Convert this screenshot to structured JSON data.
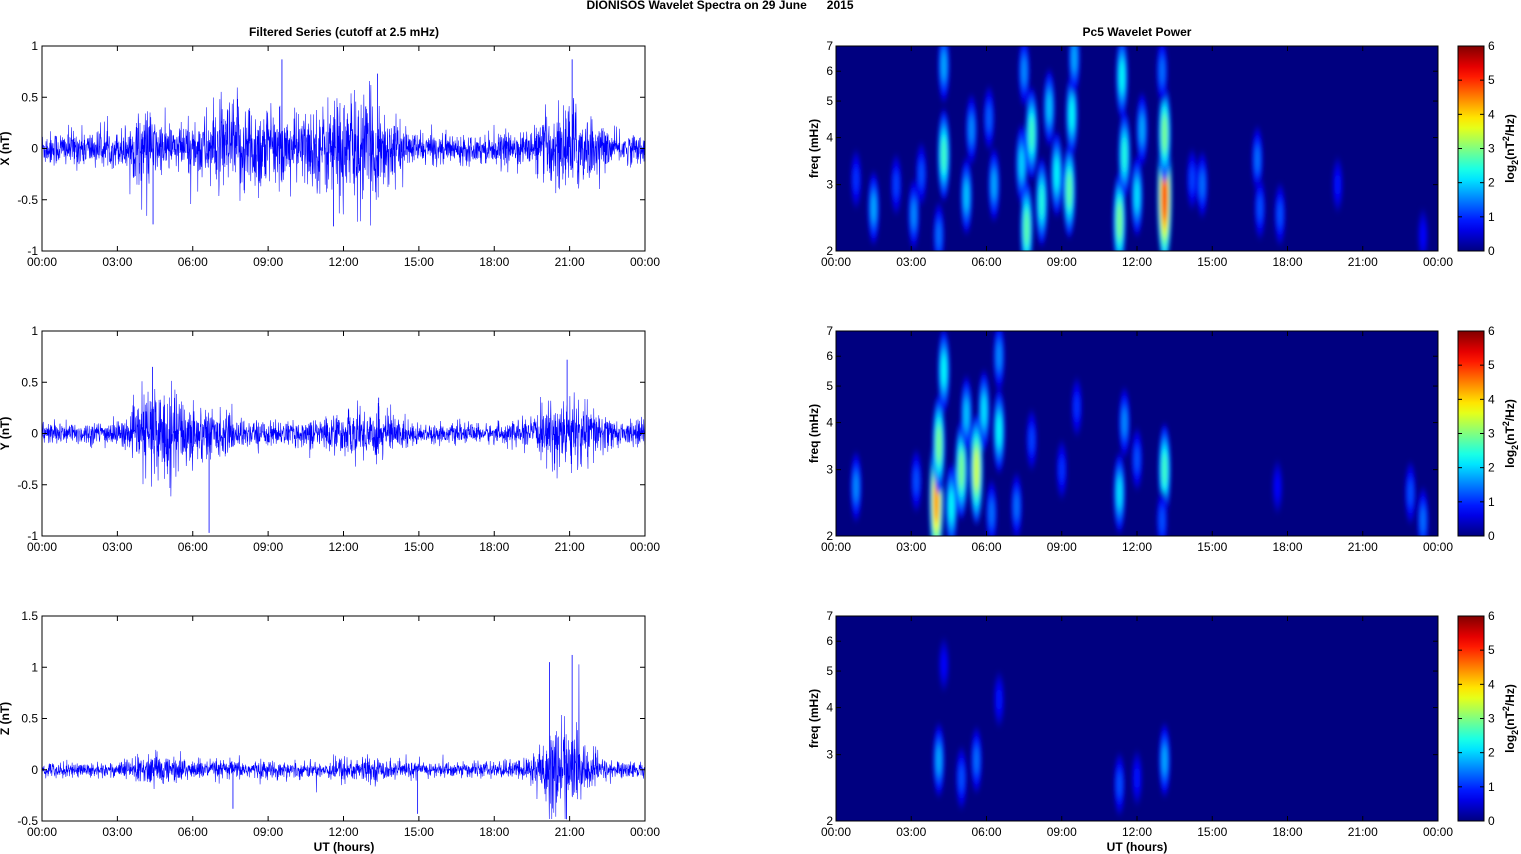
{
  "figure": {
    "main_title": "DIONISOS Wavelet Spectra on 29 June      2015",
    "left_title": "Filtered Series (cutoff at 2.5 mHz)",
    "right_title": "Pc5 Wavelet Power",
    "x_label": "UT (hours)"
  },
  "colors": {
    "series_line": "#0000ff",
    "background": "#ffffff",
    "colormap": "jet"
  },
  "chart_data": [
    {
      "type": "line",
      "component": "X",
      "ylabel": "X (nT)",
      "xlim_hours": [
        0,
        24
      ],
      "ylim": [
        -1,
        1
      ],
      "yticks": [
        -1,
        -0.5,
        0,
        0.5,
        1
      ],
      "yticklabels": [
        "-1",
        "-0.5",
        "0",
        "0.5",
        "1"
      ],
      "xticklabels": [
        "00:00",
        "03:00",
        "06:00",
        "09:00",
        "12:00",
        "15:00",
        "18:00",
        "21:00",
        "00:00"
      ],
      "series": [
        {
          "x_hours": [
            0,
            1.5,
            3,
            4.2,
            4.5,
            5.2,
            6,
            7.8,
            8.7,
            9.6,
            11.2,
            11.6,
            13.3,
            14.5,
            16,
            18,
            19.5,
            20.5,
            21.2,
            22.5,
            24
          ],
          "envelope": [
            0.18,
            0.2,
            0.18,
            0.45,
            0.3,
            0.25,
            0.3,
            0.55,
            0.5,
            0.35,
            0.45,
            0.6,
            0.55,
            0.18,
            0.15,
            0.15,
            0.2,
            0.45,
            0.5,
            0.18,
            0.15
          ],
          "extremes": [
            {
              "x_hours": 4.42,
              "y": -0.74
            },
            {
              "x_hours": 9.55,
              "y": 0.87
            },
            {
              "x_hours": 11.6,
              "y": -0.76
            },
            {
              "x_hours": 13.35,
              "y": 0.73
            },
            {
              "x_hours": 21.1,
              "y": 0.87
            }
          ]
        }
      ]
    },
    {
      "type": "line",
      "component": "Y",
      "ylabel": "Y (nT)",
      "xlim_hours": [
        0,
        24
      ],
      "ylim": [
        -1,
        1
      ],
      "yticks": [
        -1,
        -0.5,
        0,
        0.5,
        1
      ],
      "yticklabels": [
        "-1",
        "-0.5",
        "0",
        "0.5",
        "1"
      ],
      "xticklabels": [
        "00:00",
        "03:00",
        "06:00",
        "09:00",
        "12:00",
        "15:00",
        "18:00",
        "21:00",
        "00:00"
      ],
      "series": [
        {
          "x_hours": [
            0,
            2,
            3.5,
            4.3,
            4.8,
            5.6,
            6.5,
            8,
            10,
            11.6,
            13.3,
            15,
            18,
            19.5,
            20.6,
            21.2,
            23,
            24
          ],
          "envelope": [
            0.12,
            0.12,
            0.15,
            0.55,
            0.5,
            0.4,
            0.3,
            0.15,
            0.12,
            0.2,
            0.3,
            0.1,
            0.1,
            0.15,
            0.4,
            0.4,
            0.12,
            0.15
          ],
          "extremes": [
            {
              "x_hours": 4.4,
              "y": 0.65
            },
            {
              "x_hours": 6.65,
              "y": -0.97
            },
            {
              "x_hours": 20.9,
              "y": 0.72
            },
            {
              "x_hours": 13.4,
              "y": 0.35
            }
          ]
        }
      ]
    },
    {
      "type": "line",
      "component": "Z",
      "ylabel": "Z (nT)",
      "xlim_hours": [
        0,
        24
      ],
      "ylim": [
        -0.5,
        1.5
      ],
      "yticks": [
        -0.5,
        0,
        0.5,
        1,
        1.5
      ],
      "yticklabels": [
        "-0.5",
        "0",
        "0.5",
        "1",
        "1.5"
      ],
      "xticklabels": [
        "00:00",
        "03:00",
        "06:00",
        "09:00",
        "12:00",
        "15:00",
        "18:00",
        "21:00",
        "00:00"
      ],
      "series": [
        {
          "x_hours": [
            0,
            3,
            4.3,
            5,
            6.5,
            8,
            11,
            12,
            13.3,
            15,
            18,
            19.3,
            20.2,
            20.8,
            21.3,
            22.5,
            24
          ],
          "envelope": [
            0.08,
            0.08,
            0.18,
            0.15,
            0.1,
            0.1,
            0.08,
            0.15,
            0.12,
            0.08,
            0.08,
            0.12,
            0.45,
            0.55,
            0.35,
            0.1,
            0.08
          ],
          "extremes": [
            {
              "x_hours": 21.1,
              "y": 1.12
            },
            {
              "x_hours": 20.2,
              "y": 1.05
            },
            {
              "x_hours": 14.95,
              "y": -0.43
            },
            {
              "x_hours": 7.6,
              "y": -0.38
            }
          ]
        }
      ]
    },
    {
      "type": "heatmap",
      "component": "X",
      "title": "Pc5 Wavelet Power",
      "ylabel": "freq (mHz)",
      "y_scale": "log",
      "ylim_mhz": [
        2,
        7
      ],
      "yticklabels": [
        "2",
        "3",
        "4",
        "5",
        "6",
        "7"
      ],
      "xlim_hours": [
        0,
        24
      ],
      "xticklabels": [
        "00:00",
        "03:00",
        "06:00",
        "09:00",
        "12:00",
        "15:00",
        "18:00",
        "21:00",
        "00:00"
      ],
      "colorbar": {
        "label_base": "log",
        "label_sub": "2",
        "label_unit_a": "(nT",
        "label_sup": "2",
        "label_unit_b": "/Hz)",
        "range": [
          0,
          6
        ],
        "ticks": [
          "0",
          "1",
          "2",
          "3",
          "4",
          "5",
          "6"
        ]
      },
      "blobs": [
        {
          "x_hours": 0.8,
          "f_mhz": 3.1,
          "power": 1.2
        },
        {
          "x_hours": 1.5,
          "f_mhz": 2.6,
          "power": 2.0
        },
        {
          "x_hours": 2.4,
          "f_mhz": 3.0,
          "power": 1.3
        },
        {
          "x_hours": 3.1,
          "f_mhz": 2.5,
          "power": 1.8
        },
        {
          "x_hours": 3.4,
          "f_mhz": 3.2,
          "power": 1.4
        },
        {
          "x_hours": 4.3,
          "f_mhz": 3.6,
          "power": 3.0
        },
        {
          "x_hours": 4.3,
          "f_mhz": 6.2,
          "power": 2.0
        },
        {
          "x_hours": 4.1,
          "f_mhz": 2.2,
          "power": 1.6
        },
        {
          "x_hours": 5.2,
          "f_mhz": 2.8,
          "power": 2.2
        },
        {
          "x_hours": 5.4,
          "f_mhz": 4.2,
          "power": 1.8
        },
        {
          "x_hours": 6.3,
          "f_mhz": 3.0,
          "power": 2.0
        },
        {
          "x_hours": 6.1,
          "f_mhz": 4.5,
          "power": 1.5
        },
        {
          "x_hours": 7.4,
          "f_mhz": 3.4,
          "power": 2.3
        },
        {
          "x_hours": 7.6,
          "f_mhz": 2.3,
          "power": 3.2
        },
        {
          "x_hours": 7.8,
          "f_mhz": 4.1,
          "power": 3.0
        },
        {
          "x_hours": 7.5,
          "f_mhz": 6.0,
          "power": 1.8
        },
        {
          "x_hours": 8.2,
          "f_mhz": 2.7,
          "power": 2.8
        },
        {
          "x_hours": 8.8,
          "f_mhz": 3.2,
          "power": 2.6
        },
        {
          "x_hours": 8.5,
          "f_mhz": 4.8,
          "power": 2.2
        },
        {
          "x_hours": 9.3,
          "f_mhz": 2.9,
          "power": 3.2
        },
        {
          "x_hours": 9.4,
          "f_mhz": 4.6,
          "power": 2.6
        },
        {
          "x_hours": 9.5,
          "f_mhz": 6.5,
          "power": 2.0
        },
        {
          "x_hours": 11.3,
          "f_mhz": 2.4,
          "power": 3.4
        },
        {
          "x_hours": 11.5,
          "f_mhz": 3.6,
          "power": 2.8
        },
        {
          "x_hours": 11.4,
          "f_mhz": 5.8,
          "power": 2.6
        },
        {
          "x_hours": 12.0,
          "f_mhz": 2.8,
          "power": 2.4
        },
        {
          "x_hours": 12.2,
          "f_mhz": 4.2,
          "power": 2.0
        },
        {
          "x_hours": 13.1,
          "f_mhz": 2.8,
          "power": 5.6
        },
        {
          "x_hours": 13.1,
          "f_mhz": 4.1,
          "power": 3.4
        },
        {
          "x_hours": 13.0,
          "f_mhz": 6.0,
          "power": 1.6
        },
        {
          "x_hours": 14.2,
          "f_mhz": 3.1,
          "power": 1.3
        },
        {
          "x_hours": 14.6,
          "f_mhz": 3.0,
          "power": 1.6
        },
        {
          "x_hours": 16.8,
          "f_mhz": 3.5,
          "power": 1.6
        },
        {
          "x_hours": 16.9,
          "f_mhz": 2.6,
          "power": 1.4
        },
        {
          "x_hours": 17.7,
          "f_mhz": 2.5,
          "power": 1.4
        },
        {
          "x_hours": 20.0,
          "f_mhz": 3.0,
          "power": 1.0
        },
        {
          "x_hours": 23.4,
          "f_mhz": 2.2,
          "power": 0.9
        }
      ]
    },
    {
      "type": "heatmap",
      "component": "Y",
      "ylabel": "freq (mHz)",
      "y_scale": "log",
      "ylim_mhz": [
        2,
        7
      ],
      "yticklabels": [
        "2",
        "3",
        "4",
        "5",
        "6",
        "7"
      ],
      "xlim_hours": [
        0,
        24
      ],
      "xticklabels": [
        "00:00",
        "03:00",
        "06:00",
        "09:00",
        "12:00",
        "15:00",
        "18:00",
        "21:00",
        "00:00"
      ],
      "colorbar": {
        "label_base": "log",
        "label_sub": "2",
        "label_unit_a": "(nT",
        "label_sup": "2",
        "label_unit_b": "/Hz)",
        "range": [
          0,
          6
        ],
        "ticks": [
          "0",
          "1",
          "2",
          "3",
          "4",
          "5",
          "6"
        ]
      },
      "blobs": [
        {
          "x_hours": 0.8,
          "f_mhz": 2.7,
          "power": 1.8
        },
        {
          "x_hours": 3.2,
          "f_mhz": 2.8,
          "power": 1.4
        },
        {
          "x_hours": 4.0,
          "f_mhz": 2.5,
          "power": 5.0
        },
        {
          "x_hours": 4.1,
          "f_mhz": 3.5,
          "power": 3.4
        },
        {
          "x_hours": 4.3,
          "f_mhz": 5.5,
          "power": 2.6
        },
        {
          "x_hours": 4.6,
          "f_mhz": 2.4,
          "power": 2.6
        },
        {
          "x_hours": 5.0,
          "f_mhz": 3.0,
          "power": 3.4
        },
        {
          "x_hours": 5.2,
          "f_mhz": 4.2,
          "power": 2.2
        },
        {
          "x_hours": 5.6,
          "f_mhz": 3.0,
          "power": 4.0
        },
        {
          "x_hours": 5.9,
          "f_mhz": 4.3,
          "power": 2.4
        },
        {
          "x_hours": 6.5,
          "f_mhz": 3.8,
          "power": 2.6
        },
        {
          "x_hours": 6.5,
          "f_mhz": 6.0,
          "power": 1.8
        },
        {
          "x_hours": 6.2,
          "f_mhz": 2.3,
          "power": 1.6
        },
        {
          "x_hours": 7.2,
          "f_mhz": 2.4,
          "power": 1.6
        },
        {
          "x_hours": 7.8,
          "f_mhz": 3.6,
          "power": 1.3
        },
        {
          "x_hours": 9.0,
          "f_mhz": 3.0,
          "power": 1.2
        },
        {
          "x_hours": 9.6,
          "f_mhz": 4.4,
          "power": 1.2
        },
        {
          "x_hours": 11.3,
          "f_mhz": 2.6,
          "power": 2.4
        },
        {
          "x_hours": 11.5,
          "f_mhz": 4.0,
          "power": 1.8
        },
        {
          "x_hours": 12.0,
          "f_mhz": 3.2,
          "power": 1.4
        },
        {
          "x_hours": 13.1,
          "f_mhz": 3.0,
          "power": 3.0
        },
        {
          "x_hours": 13.0,
          "f_mhz": 2.2,
          "power": 1.4
        },
        {
          "x_hours": 17.6,
          "f_mhz": 2.7,
          "power": 0.9
        },
        {
          "x_hours": 22.9,
          "f_mhz": 2.6,
          "power": 1.4
        },
        {
          "x_hours": 23.4,
          "f_mhz": 2.2,
          "power": 1.6
        }
      ]
    },
    {
      "type": "heatmap",
      "component": "Z",
      "ylabel": "freq (mHz)",
      "y_scale": "log",
      "ylim_mhz": [
        2,
        7
      ],
      "yticklabels": [
        "2",
        "3",
        "4",
        "5",
        "6",
        "7"
      ],
      "xlim_hours": [
        0,
        24
      ],
      "xticklabels": [
        "00:00",
        "03:00",
        "06:00",
        "09:00",
        "12:00",
        "15:00",
        "18:00",
        "21:00",
        "00:00"
      ],
      "colorbar": {
        "label_base": "log",
        "label_sub": "2",
        "label_unit_a": "(nT",
        "label_sup": "2",
        "label_unit_b": "/Hz)",
        "range": [
          0,
          6
        ],
        "ticks": [
          "0",
          "1",
          "2",
          "3",
          "4",
          "5",
          "6"
        ]
      },
      "blobs": [
        {
          "x_hours": 4.1,
          "f_mhz": 2.9,
          "power": 2.0
        },
        {
          "x_hours": 4.3,
          "f_mhz": 5.2,
          "power": 0.9
        },
        {
          "x_hours": 5.0,
          "f_mhz": 2.6,
          "power": 1.4
        },
        {
          "x_hours": 5.6,
          "f_mhz": 2.9,
          "power": 1.6
        },
        {
          "x_hours": 6.5,
          "f_mhz": 4.2,
          "power": 1.0
        },
        {
          "x_hours": 11.3,
          "f_mhz": 2.5,
          "power": 1.4
        },
        {
          "x_hours": 12.0,
          "f_mhz": 2.6,
          "power": 1.0
        },
        {
          "x_hours": 13.1,
          "f_mhz": 2.9,
          "power": 2.0
        }
      ]
    }
  ]
}
